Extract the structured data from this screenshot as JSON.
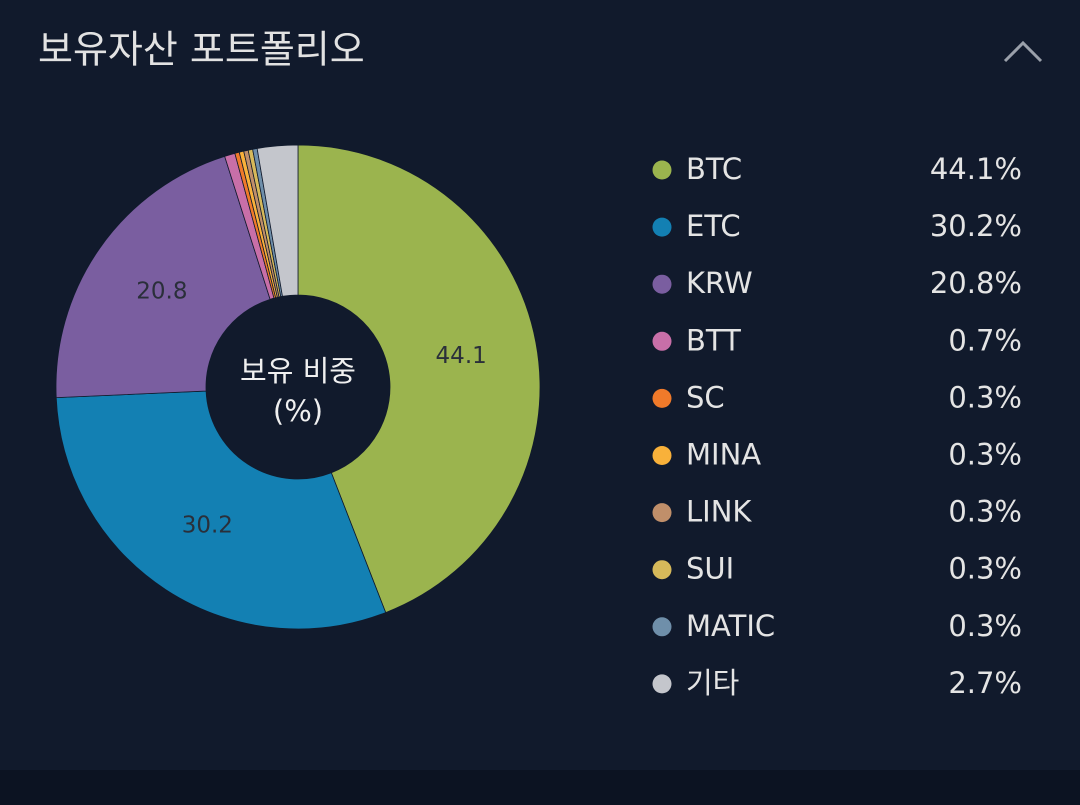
{
  "chart_data": {
    "type": "pie",
    "title": "보유자산 포트폴리오",
    "center_label": [
      "보유 비중",
      "(%)"
    ],
    "categories": [
      "BTC",
      "ETC",
      "KRW",
      "BTT",
      "SC",
      "MINA",
      "LINK",
      "SUI",
      "MATIC",
      "기타"
    ],
    "values": [
      44.1,
      30.2,
      20.8,
      0.7,
      0.3,
      0.3,
      0.3,
      0.3,
      0.3,
      2.7
    ],
    "value_labels": [
      "44.1%",
      "30.2%",
      "20.8%",
      "0.7%",
      "0.3%",
      "0.3%",
      "0.3%",
      "0.3%",
      "0.3%",
      "2.7%"
    ],
    "colors": [
      "#9bb44e",
      "#1380b3",
      "#7a5ea0",
      "#c86fa8",
      "#f07a2a",
      "#f9b13a",
      "#c08f6a",
      "#d6b95a",
      "#6f8faa",
      "#c4c6cc"
    ],
    "legend": "right"
  }
}
